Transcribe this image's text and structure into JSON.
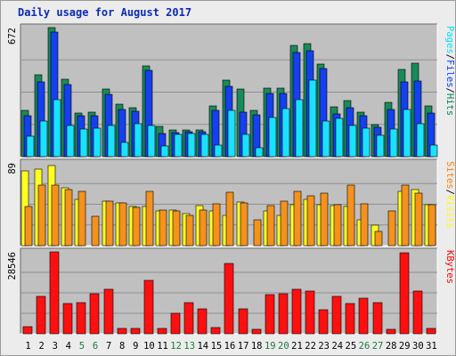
{
  "chart_data": {
    "title": "Daily usage for August 2017",
    "type": "bar",
    "days": [
      "1",
      "2",
      "3",
      "4",
      "5",
      "6",
      "7",
      "8",
      "9",
      "10",
      "11",
      "12",
      "13",
      "14",
      "15",
      "16",
      "17",
      "18",
      "19",
      "20",
      "21",
      "22",
      "23",
      "24",
      "25",
      "26",
      "27",
      "28",
      "29",
      "30",
      "31"
    ],
    "weekend_days": [
      "5",
      "6",
      "12",
      "13",
      "19",
      "20",
      "26",
      "27"
    ],
    "panels": [
      {
        "id": "pages-files-hits",
        "max_label": "672",
        "ylim": [
          0,
          672
        ],
        "axis_legend": [
          {
            "text": "Pages",
            "color": "#00e0ff"
          },
          {
            "text": "Files",
            "color": "#0040ff"
          },
          {
            "text": "Hits",
            "color": "#008060"
          }
        ],
        "series": [
          {
            "name": "Hits",
            "color": "#1a8a5a",
            "values": [
              240,
              425,
              672,
              405,
              228,
              230,
              352,
              275,
              255,
              475,
              158,
              138,
              140,
              140,
              262,
              400,
              352,
              240,
              355,
              355,
              580,
              588,
              482,
              258,
              290,
              230,
              165,
              285,
              455,
              485,
              262
            ]
          },
          {
            "name": "Files",
            "color": "#1540ee",
            "values": [
              212,
              387,
              650,
              375,
              212,
              212,
              326,
              245,
              235,
              450,
              122,
              125,
              128,
              128,
              240,
              366,
              232,
              220,
              328,
              328,
              540,
              550,
              460,
              222,
              255,
              212,
              155,
              244,
              388,
              395,
              226
            ]
          },
          {
            "name": "Pages",
            "color": "#19e2ff",
            "values": [
              108,
              185,
              295,
              162,
              142,
              150,
              162,
              75,
              172,
              162,
              55,
              115,
              120,
              118,
              58,
              242,
              115,
              45,
              202,
              250,
              298,
              400,
              185,
              200,
              160,
              150,
              110,
              145,
              245,
              172,
              62
            ]
          }
        ]
      },
      {
        "id": "sites-visits",
        "max_label": "89",
        "ylim": [
          0,
          89
        ],
        "axis_legend": [
          {
            "text": "Sites",
            "color": "#ff8000"
          },
          {
            "text": "Visits",
            "color": "#ffff00"
          }
        ],
        "series": [
          {
            "name": "Visits",
            "color": "#ffff22",
            "values": [
              80,
              82,
              86,
              62,
              50,
              0,
              48,
              46,
              42,
              42,
              37,
              38,
              34,
              43,
              37,
              33,
              47,
              0,
              37,
              33,
              44,
              50,
              44,
              43,
              42,
              28,
              22,
              0,
              58,
              60,
              44
            ]
          },
          {
            "name": "Sites",
            "color": "#f4921e",
            "values": [
              42,
              65,
              65,
              60,
              58,
              32,
              48,
              46,
              41,
              58,
              38,
              37,
              33,
              38,
              45,
              57,
              46,
              28,
              43,
              48,
              58,
              54,
              56,
              44,
              65,
              45,
              15,
              37,
              65,
              56,
              44
            ]
          }
        ]
      },
      {
        "id": "kbytes",
        "max_label": "28546",
        "ylim": [
          0,
          28546
        ],
        "axis_legend": [
          {
            "text": "KBytes",
            "color": "#ff0000"
          }
        ],
        "series": [
          {
            "name": "KBytes",
            "color": "#ff1010",
            "values": [
              2400,
              13000,
              28546,
              10500,
              11000,
              14000,
              15500,
              1800,
              2000,
              18500,
              1800,
              7000,
              11000,
              8600,
              2200,
              24500,
              8600,
              1400,
              13500,
              14000,
              15500,
              15000,
              8500,
              13000,
              10500,
              12500,
              11000,
              1500,
              28300,
              15000,
              1800
            ]
          }
        ]
      }
    ]
  }
}
